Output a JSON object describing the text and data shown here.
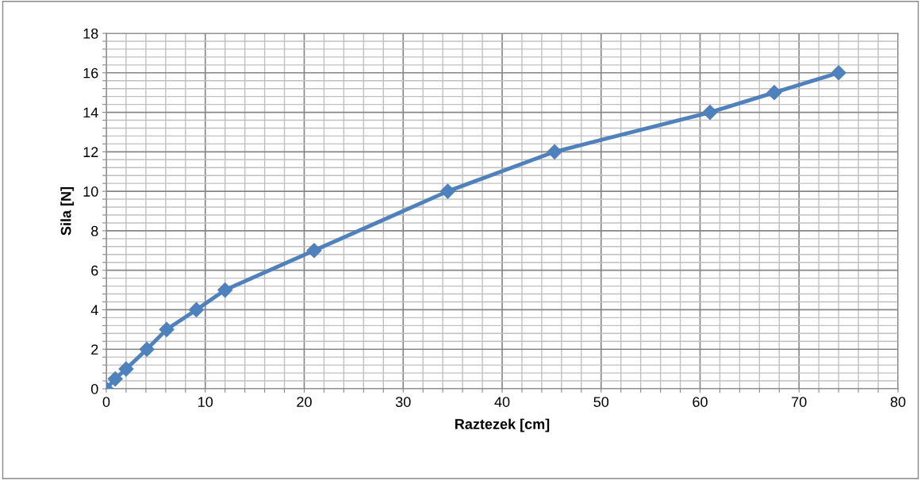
{
  "chart_data": {
    "type": "line",
    "xlabel": "Raztezek [cm]",
    "ylabel": "Sila [N]",
    "x": [
      0,
      0.9,
      2,
      4.1,
      6.1,
      9.1,
      12,
      21,
      34.5,
      45.3,
      61,
      67.5,
      74
    ],
    "series": [
      {
        "color": "#4f81bd",
        "values": [
          0,
          0.5,
          1,
          2,
          3,
          4,
          5,
          7,
          10,
          12,
          14,
          15,
          16
        ]
      }
    ],
    "xlim": [
      0,
      80
    ],
    "ylim": [
      0,
      18
    ],
    "xticks": [
      0,
      {
        "value": 2,
        "label": null
      },
      {
        "value": 4,
        "label": null
      },
      {
        "value": 6,
        "label": null
      },
      {
        "value": 8,
        "label": null
      },
      10,
      {
        "value": 12,
        "label": null
      },
      {
        "value": 14,
        "label": null
      },
      {
        "value": 16,
        "label": null
      },
      {
        "value": 18,
        "label": null
      },
      20,
      {
        "value": 22,
        "label": null
      },
      {
        "value": 24,
        "label": null
      },
      {
        "value": 26,
        "label": null
      },
      {
        "value": 28,
        "label": null
      },
      30,
      {
        "value": 32,
        "label": null
      },
      {
        "value": 34,
        "label": null
      },
      {
        "value": 36,
        "label": null
      },
      {
        "value": 38,
        "label": null
      },
      40,
      {
        "value": 42,
        "label": null
      },
      {
        "value": 44,
        "label": null
      },
      {
        "value": 46,
        "label": null
      },
      {
        "value": 48,
        "label": null
      },
      50,
      {
        "value": 52,
        "label": null
      },
      {
        "value": 54,
        "label": null
      },
      {
        "value": 56,
        "label": null
      },
      {
        "value": 58,
        "label": null
      },
      60,
      {
        "value": 62,
        "label": null
      },
      {
        "value": 64,
        "label": null
      },
      {
        "value": 66,
        "label": null
      },
      {
        "value": 68,
        "label": null
      },
      70,
      {
        "value": 72,
        "label": null
      },
      {
        "value": 74,
        "label": null
      },
      {
        "value": 76,
        "label": null
      },
      {
        "value": 78,
        "label": null
      },
      80
    ],
    "yticks": [
      0,
      {
        "value": 0.4,
        "label": null
      },
      {
        "value": 0.8,
        "label": null
      },
      {
        "value": 1.2,
        "label": null
      },
      {
        "value": 1.6,
        "label": null
      },
      2,
      {
        "value": 2.4,
        "label": null
      },
      {
        "value": 2.8,
        "label": null
      },
      {
        "value": 3.2,
        "label": null
      },
      {
        "value": 3.6,
        "label": null
      },
      4,
      {
        "value": 4.4,
        "label": null
      },
      {
        "value": 4.8,
        "label": null
      },
      {
        "value": 5.2,
        "label": null
      },
      {
        "value": 5.6,
        "label": null
      },
      6,
      {
        "value": 6.4,
        "label": null
      },
      {
        "value": 6.8,
        "label": null
      },
      {
        "value": 7.2,
        "label": null
      },
      {
        "value": 7.6,
        "label": null
      },
      8,
      {
        "value": 8.4,
        "label": null
      },
      {
        "value": 8.8,
        "label": null
      },
      {
        "value": 9.2,
        "label": null
      },
      {
        "value": 9.6,
        "label": null
      },
      10,
      {
        "value": 10.4,
        "label": null
      },
      {
        "value": 10.8,
        "label": null
      },
      {
        "value": 11.2,
        "label": null
      },
      {
        "value": 11.6,
        "label": null
      },
      12,
      {
        "value": 12.4,
        "label": null
      },
      {
        "value": 12.8,
        "label": null
      },
      {
        "value": 13.2,
        "label": null
      },
      {
        "value": 13.6,
        "label": null
      },
      14,
      {
        "value": 14.4,
        "label": null
      },
      {
        "value": 14.8,
        "label": null
      },
      {
        "value": 15.2,
        "label": null
      },
      {
        "value": 15.6,
        "label": null
      },
      16,
      {
        "value": 16.4,
        "label": null
      },
      {
        "value": 16.8,
        "label": null
      },
      {
        "value": 17.2,
        "label": null
      },
      {
        "value": 17.6,
        "label": null
      },
      18
    ],
    "grid": true,
    "marker": "diamond",
    "line_style": "solid",
    "legend": false
  }
}
